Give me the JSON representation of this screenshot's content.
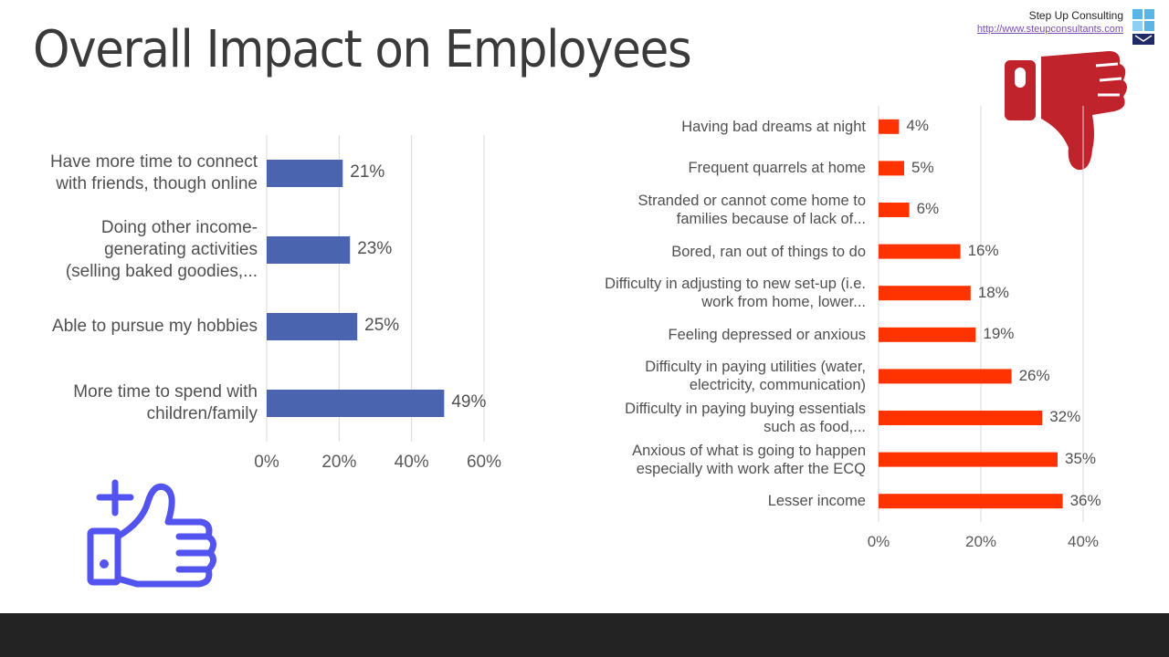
{
  "slide": {
    "title": "Overall Impact on Employees"
  },
  "brand": {
    "name": "Step Up Consulting",
    "url": "http://www.steupconsultants.com"
  },
  "icons": {
    "positive": "thumbs-up-plus-icon",
    "negative": "thumbs-down-icon"
  },
  "colors": {
    "positive_bar": "#4A64B0",
    "negative_bar": "#FF3300",
    "thumb_up": "#5353F0",
    "thumb_down": "#C0232B",
    "footer": "#232323"
  },
  "chart_data": [
    {
      "type": "bar",
      "orientation": "horizontal",
      "categories": [
        "Have more time to connect with friends, though online",
        "Doing other income-generating activities (selling baked goodies,...",
        "Able to pursue my hobbies",
        "More time to spend with children/family"
      ],
      "values": [
        21,
        23,
        25,
        49
      ],
      "value_labels": [
        "21%",
        "23%",
        "25%",
        "49%"
      ],
      "xlim": [
        0,
        60
      ],
      "ticks": [
        "0%",
        "20%",
        "40%",
        "60%"
      ],
      "tick_values": [
        0,
        20,
        40,
        60
      ],
      "grid": true,
      "title": "",
      "xlabel": "",
      "ylabel": ""
    },
    {
      "type": "bar",
      "orientation": "horizontal",
      "categories": [
        "Having bad dreams at night",
        "Frequent quarrels at home",
        "Stranded or cannot come home to families because of lack of...",
        "Bored, ran out of things to do",
        "Difficulty in adjusting to new set-up (i.e. work from home, lower...",
        "Feeling depressed or anxious",
        "Difficulty in paying utilities (water, electricity, communication)",
        "Difficulty in paying buying essentials such as food,...",
        "Anxious of what is going to happen especially with work after the ECQ",
        "Lesser income"
      ],
      "values": [
        4,
        5,
        6,
        16,
        18,
        19,
        26,
        32,
        35,
        36
      ],
      "value_labels": [
        "4%",
        "5%",
        "6%",
        "16%",
        "18%",
        "19%",
        "26%",
        "32%",
        "35%",
        "36%"
      ],
      "xlim": [
        0,
        40
      ],
      "ticks": [
        "0%",
        "20%",
        "40%"
      ],
      "tick_values": [
        0,
        20,
        40
      ],
      "grid": true,
      "title": "",
      "xlabel": "",
      "ylabel": ""
    }
  ]
}
